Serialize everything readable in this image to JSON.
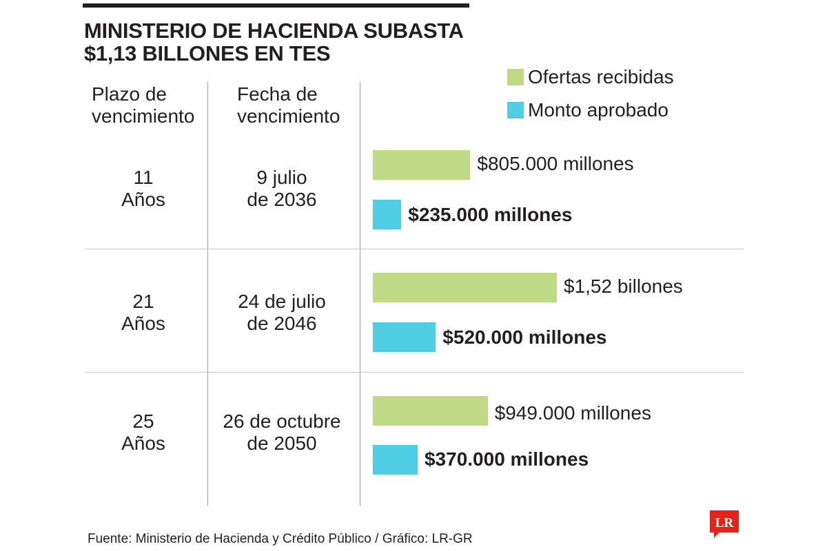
{
  "header": {
    "title_line1": "MINISTERIO DE HACIENDA SUBASTA",
    "title_line2": "$1,13 BILLONES EN TES"
  },
  "columns": {
    "plazo_line1": "Plazo de",
    "plazo_line2": "vencimiento",
    "fecha_line1": "Fecha de",
    "fecha_line2": "vencimiento"
  },
  "legend": [
    {
      "label": "Ofertas recibidas",
      "color": "#bfd984"
    },
    {
      "label": "Monto aprobado",
      "color": "#4fcde3"
    }
  ],
  "chart_data": {
    "type": "bar",
    "orientation": "horizontal",
    "title": "MINISTERIO DE HACIENDA SUBASTA $1,13 BILLONES EN TES",
    "unit": "millones de pesos",
    "legend_position": "top-right",
    "grid": false,
    "xlim": [
      0,
      1520000
    ],
    "rows": [
      {
        "plazo": [
          "11",
          "Años"
        ],
        "fecha": [
          "9 julio",
          "de 2036"
        ],
        "ofertas": 805000,
        "ofertas_label": "$805.000 millones",
        "aprobado": 235000,
        "aprobado_label": "$235.000 millones"
      },
      {
        "plazo": [
          "21",
          "Años"
        ],
        "fecha": [
          "24 de julio",
          "de 2046"
        ],
        "ofertas": 1520000,
        "ofertas_label": "$1,52 billones",
        "aprobado": 520000,
        "aprobado_label": "$520.000 millones"
      },
      {
        "plazo": [
          "25",
          "Años"
        ],
        "fecha": [
          "26 de octubre",
          "de 2050"
        ],
        "ofertas": 949000,
        "ofertas_label": "$949.000 millones",
        "aprobado": 370000,
        "aprobado_label": "$370.000 millones"
      }
    ]
  },
  "footer": {
    "source": "Fuente: Ministerio de Hacienda y Crédito Público / Gráfico: LR-GR",
    "logo_text": "LR",
    "logo_color": "#e1251b"
  }
}
